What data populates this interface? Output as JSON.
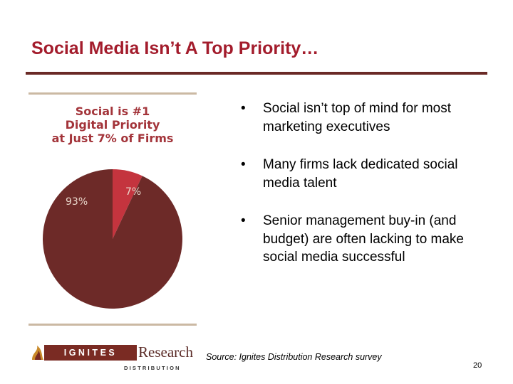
{
  "slide": {
    "title": "Social Media Isn’t A Top Priority…",
    "page_number": "20",
    "source": "Source: Ignites Distribution Research survey"
  },
  "bullets": [
    {
      "marker": "•",
      "text": "Social isn’t top of mind for most marketing executives"
    },
    {
      "marker": "•",
      "text": "Many firms lack dedicated social media talent"
    },
    {
      "marker": "•",
      "text": "Senior management buy-in (and budget) are often lacking to make social media successful"
    }
  ],
  "logo": {
    "box_text": "IGNITES",
    "research_text": "Research",
    "sub_text": "DISTRIBUTION",
    "colors": {
      "box": "#7a2b23",
      "mark": "#c98a2a"
    }
  },
  "chart_data": {
    "type": "pie",
    "title_lines": [
      "Social is #1",
      "Digital Priority",
      "at Just 7% of Firms"
    ],
    "slices": [
      {
        "label": "7%",
        "value": 7,
        "color": "#c4343e"
      },
      {
        "label": "93%",
        "value": 93,
        "color": "#6d2a28"
      }
    ],
    "start": "12 o'clock, clockwise",
    "label_color": "#ead8cc"
  }
}
